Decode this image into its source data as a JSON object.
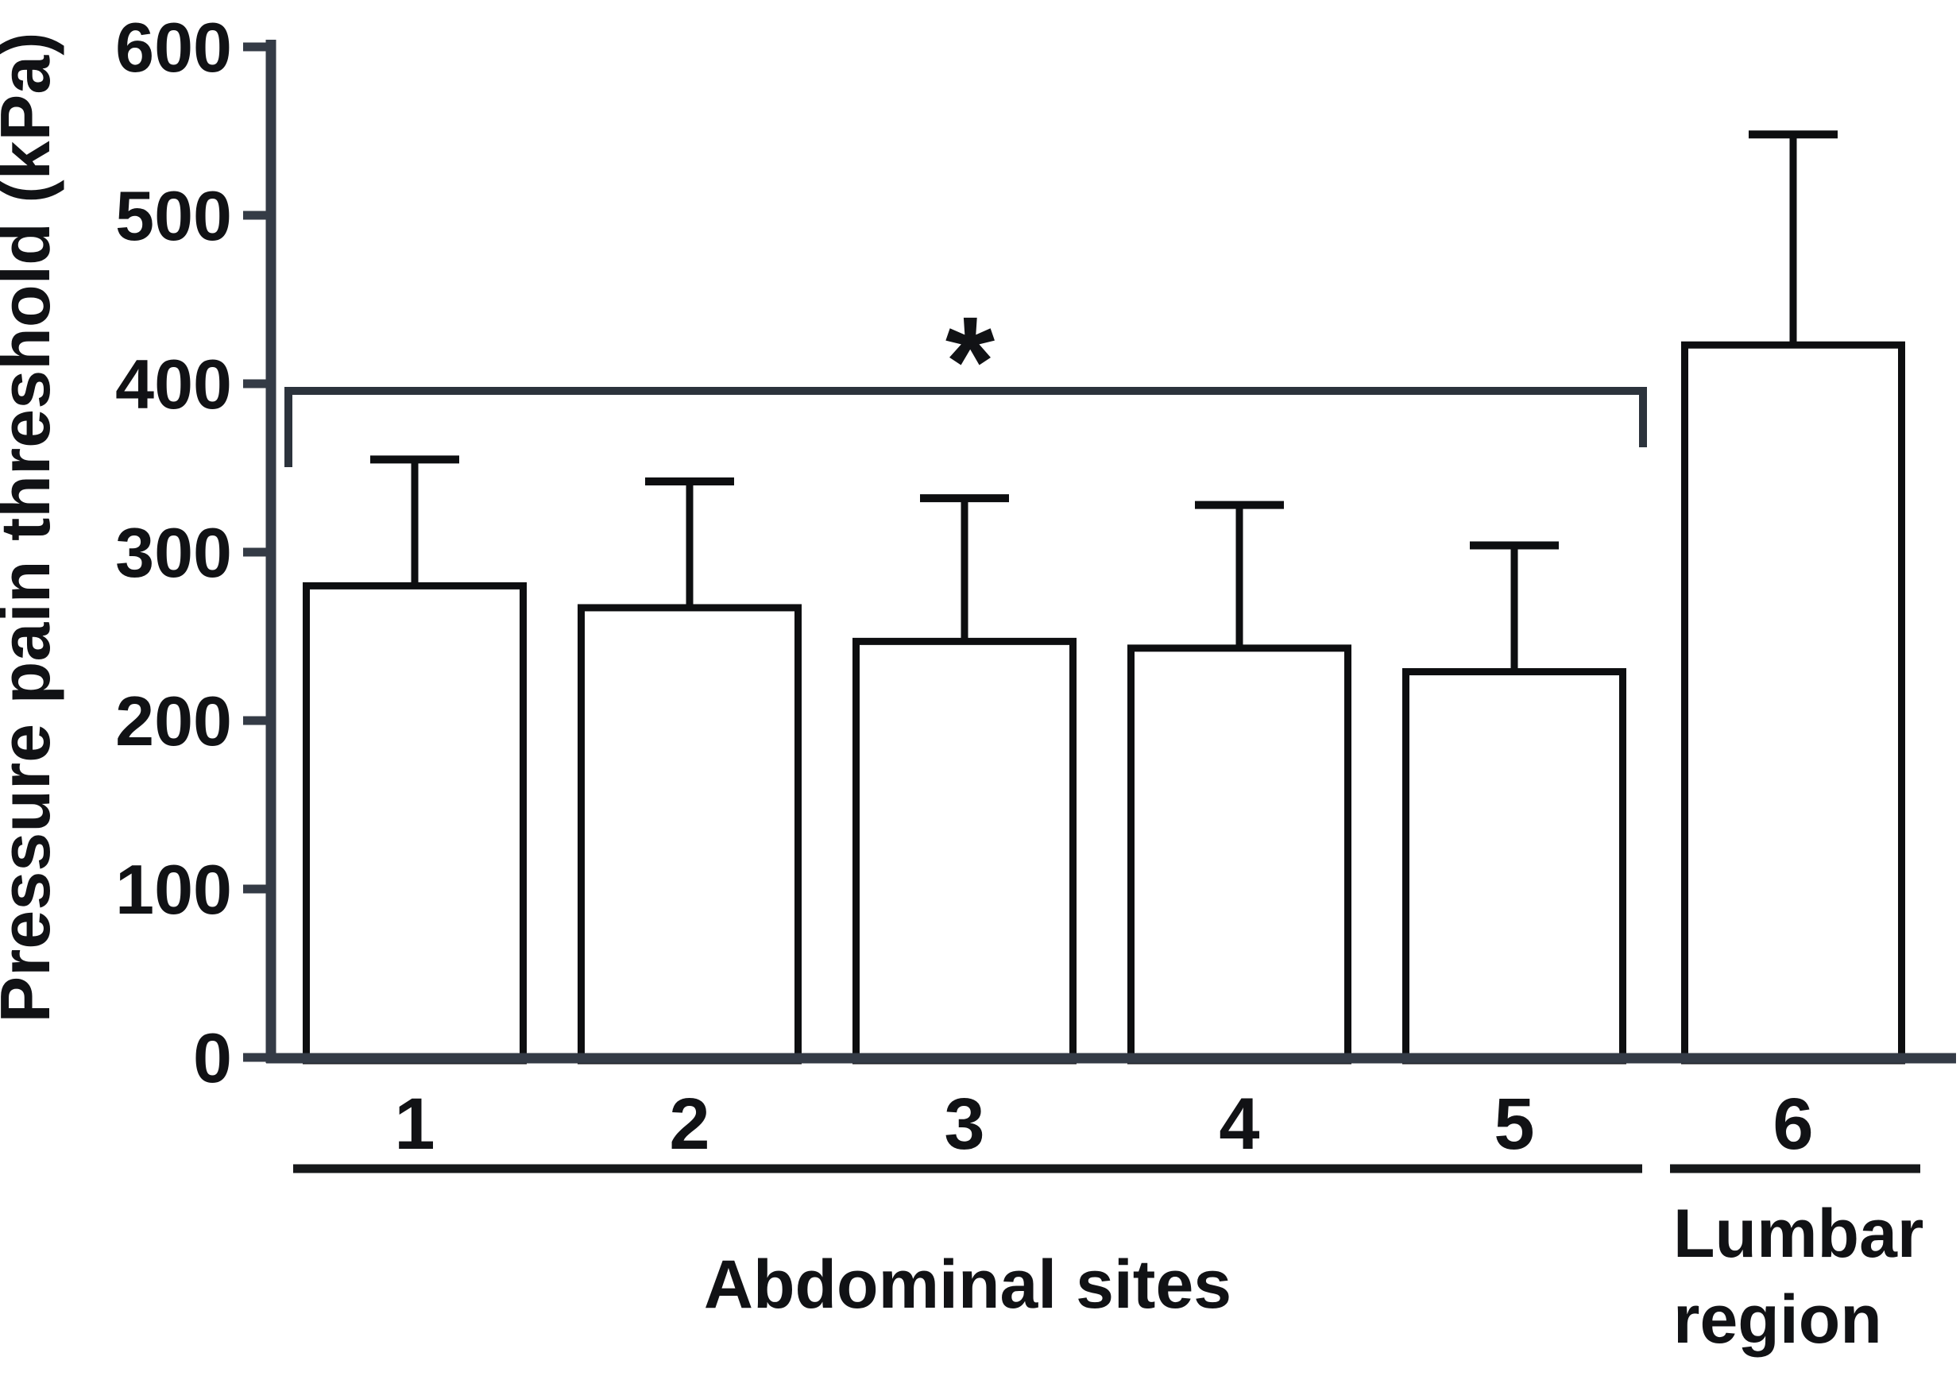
{
  "figure": {
    "background": "#ffffff",
    "colors": {
      "bar_stroke": "#0d0e10",
      "bar_fill": "#ffffff",
      "axis": "#343b46",
      "bracket": "#2c333c",
      "underline": "#16181a",
      "text": "#111215"
    }
  },
  "chart_data": {
    "type": "bar",
    "title": "",
    "xlabel": "",
    "ylabel": "Pressure pain threshold (kPa)",
    "categories": [
      "1",
      "2",
      "3",
      "4",
      "5",
      "6"
    ],
    "values": [
      280,
      267,
      247,
      243,
      229,
      423
    ],
    "error_upper_tops": [
      355,
      342,
      332,
      328,
      304,
      548
    ],
    "ylim": [
      0,
      600
    ],
    "yticks": [
      0,
      100,
      200,
      300,
      400,
      500,
      600
    ],
    "grid": "off",
    "legend": "none",
    "bar_fill": "white",
    "bar_outline": "black",
    "groups": [
      {
        "label": "Abdominal sites",
        "label_lines": [
          "Abdominal sites"
        ],
        "categories": [
          "1",
          "2",
          "3",
          "4",
          "5"
        ]
      },
      {
        "label": "Lumbar region",
        "label_lines": [
          "Lumbar",
          "region"
        ],
        "categories": [
          "6"
        ]
      }
    ],
    "significance": {
      "symbol": "*",
      "from_category": "1",
      "to_category": "5",
      "level_kpa": 396
    }
  }
}
